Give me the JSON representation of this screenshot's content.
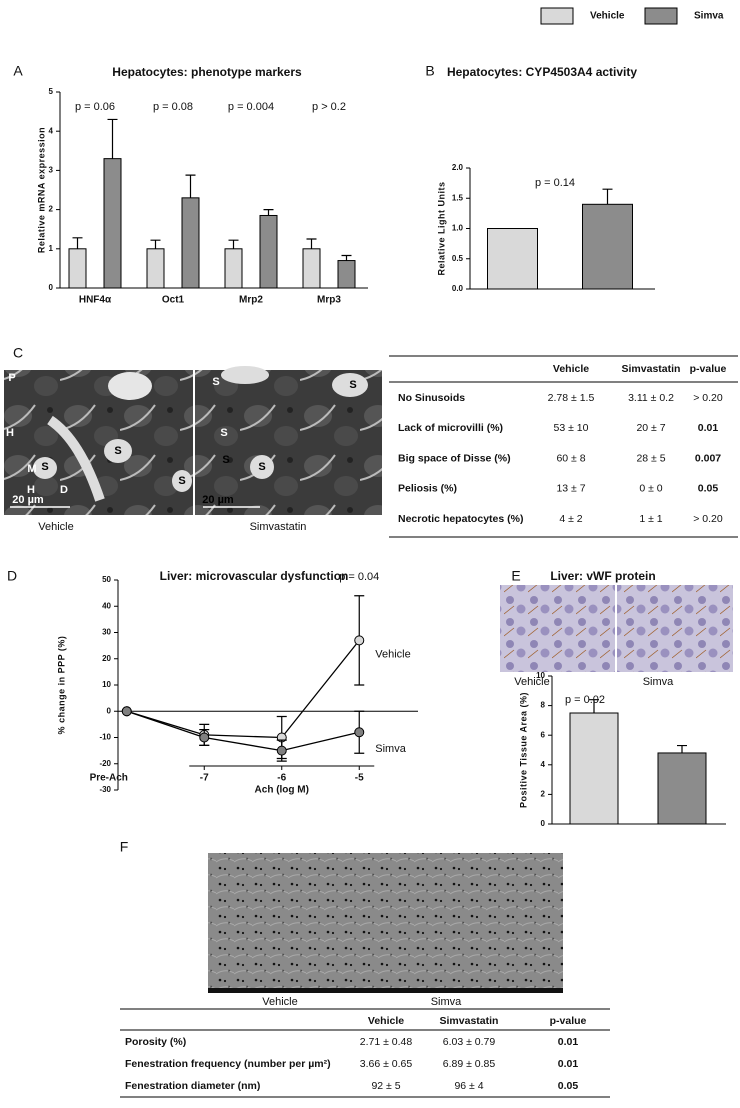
{
  "chart_data": [
    {
      "type": "bar",
      "panel_label": "A",
      "title": "Hepatocytes: phenotype markers",
      "y_label": "Relative mRNA expression",
      "categories": [
        "HNF4α",
        "Oct1",
        "Mrp2",
        "Mrp3"
      ],
      "series": [
        {
          "name": "Vehicle",
          "color": "#d9d9d9",
          "values": [
            1,
            1,
            1,
            1
          ],
          "errors": [
            0.28,
            0.22,
            0.22,
            0.25
          ]
        },
        {
          "name": "Simva",
          "color": "#8c8c8c",
          "values": [
            3.3,
            2.3,
            1.85,
            0.7
          ],
          "errors": [
            1.0,
            0.58,
            0.15,
            0.13
          ]
        }
      ],
      "annotations": [
        "p = 0.06",
        "p = 0.08",
        "p = 0.004",
        "p > 0.2"
      ],
      "ylim": [
        0,
        5
      ],
      "yticks": [
        0,
        1,
        2,
        3,
        4,
        5
      ],
      "legend": "top-right"
    },
    {
      "type": "bar",
      "panel_label": "B",
      "title": "Hepatocytes: CYP4503A4 activity",
      "y_label": "Relative Light Units",
      "values": [
        1.0,
        1.4
      ],
      "errors": [
        null,
        0.25
      ],
      "colors": [
        "#d9d9d9",
        "#8c8c8c"
      ],
      "annotations": [
        "p = 0.14"
      ],
      "ylim": [
        0,
        2
      ],
      "yticks": [
        {
          "value": 0,
          "label": "0.0"
        },
        {
          "value": 0.5,
          "label": "0.5"
        },
        {
          "value": 1,
          "label": "1.0"
        },
        {
          "value": 1.5,
          "label": "1.5"
        },
        {
          "value": 2,
          "label": "2.0"
        }
      ]
    },
    {
      "type": "line",
      "panel_label": "D",
      "title": "Liver: microvascular dysfunction",
      "y_label": "% change in PPP (%)",
      "x_label": "Ach (log M)",
      "categories": [
        "Pre-Ach",
        "-7",
        "-6",
        "-5"
      ],
      "series": [
        {
          "name": "Vehicle",
          "color": "#d9d9d9",
          "values": [
            0,
            -9,
            -10,
            27
          ],
          "errors": [
            null,
            4,
            8,
            17
          ]
        },
        {
          "name": "Simva",
          "color": "#808080",
          "values": [
            0,
            -10,
            -15,
            -8
          ],
          "errors": [
            null,
            3,
            4,
            8
          ]
        }
      ],
      "annotations": [
        "p = 0.04"
      ],
      "ylim": [
        -30,
        50
      ],
      "yticks": [
        -30,
        -20,
        -10,
        0,
        10,
        20,
        30,
        40,
        50
      ]
    },
    {
      "type": "bar",
      "panel_label": "E",
      "title": "Liver: vWF protein",
      "y_label": "Positive Tissue Area (%)",
      "image_captions": [
        "Vehicle",
        "Simva"
      ],
      "values": [
        7.5,
        4.8
      ],
      "errors": [
        0.9,
        0.5
      ],
      "colors": [
        "#d9d9d9",
        "#8c8c8c"
      ],
      "annotations": [
        "p = 0.02"
      ],
      "ylim": [
        0,
        10
      ],
      "yticks": [
        0,
        2,
        4,
        6,
        8,
        10
      ]
    }
  ],
  "panel_c": {
    "panel_label": "C",
    "images": [
      {
        "caption": "Vehicle",
        "labels": [
          "P",
          "H",
          "S",
          "M",
          "S",
          "S",
          "H",
          "D",
          "20 µm"
        ]
      },
      {
        "caption": "Simvastatin",
        "labels": [
          "S",
          "S",
          "S",
          "S",
          "S",
          "20 µm"
        ]
      }
    ],
    "table": {
      "header": [
        "Vehicle",
        "Simvastatin",
        "p-value"
      ],
      "rows": [
        [
          "No Sinusoids",
          "2.78 ± 1.5",
          "3.11 ± 0.2",
          "> 0.20"
        ],
        [
          "Lack of microvilli (%)",
          "53 ± 10",
          "20 ± 7",
          "0.01"
        ],
        [
          "Big space of Disse (%)",
          "60 ± 8",
          "28 ± 5",
          "0.007"
        ],
        [
          "Peliosis (%)",
          "13 ± 7",
          "0 ± 0",
          "0.05"
        ],
        [
          "Necrotic hepatocytes (%)",
          "4 ± 2",
          "1 ± 1",
          "> 0.20"
        ]
      ],
      "p_bold": [
        false,
        true,
        true,
        true,
        false
      ]
    }
  },
  "panel_f": {
    "panel_label": "F",
    "images": [
      {
        "caption": "Vehicle"
      },
      {
        "caption": "Simva"
      }
    ],
    "table": {
      "header": [
        "Vehicle",
        "Simvastatin",
        "p-value"
      ],
      "rows": [
        [
          "Porosity (%)",
          "2.71 ± 0.48",
          "6.03 ± 0.79",
          "0.01"
        ],
        [
          "Fenestration frequency (number per µm²)",
          "3.66 ± 0.65",
          "6.89 ± 0.85",
          "0.01"
        ],
        [
          "Fenestration diameter (nm)",
          "92 ± 5",
          "96 ± 4",
          "0.05"
        ]
      ],
      "p_bold": [
        true,
        true,
        true
      ]
    }
  }
}
